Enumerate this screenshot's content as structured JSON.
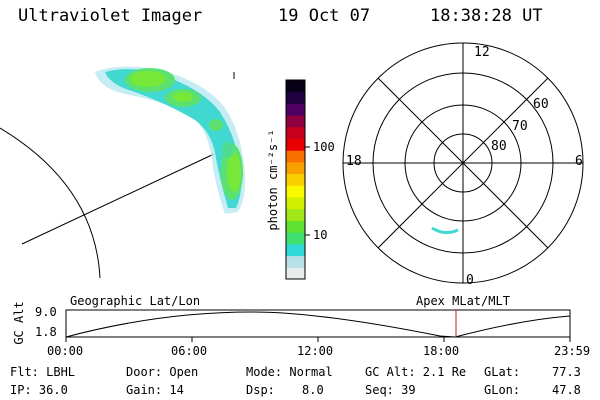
{
  "header": {
    "instrument": "Ultraviolet Imager",
    "date": "19 Oct 07",
    "time": "18:38:28 UT"
  },
  "colorbar": {
    "tick_100": "100",
    "tick_10": "10",
    "unit_label": "photon cm⁻²s⁻¹",
    "colors": [
      "#e8ecec",
      "#b8e0e8",
      "#30d8d8",
      "#40e070",
      "#60e030",
      "#a0e818",
      "#d0f000",
      "#f8f800",
      "#f8d000",
      "#f8a000",
      "#f87000",
      "#e80000",
      "#c80020",
      "#900040",
      "#500060",
      "#200040",
      "#080018"
    ]
  },
  "polar_plot": {
    "mlt_top": "12",
    "mlt_left": "18",
    "mlt_right": "6",
    "mlt_bottom": "0",
    "lat_60": "60",
    "lat_70": "70",
    "lat_80": "80"
  },
  "timeline": {
    "left_label": "Geographic Lat/Lon",
    "right_label": "Apex MLat/MLT",
    "axis_title": "GC Alt",
    "y_max": "9.0",
    "y_min": "1.8",
    "x_ticks": [
      "00:00",
      "06:00",
      "12:00",
      "18:00",
      "23:59"
    ],
    "marker_color": "#c02020"
  },
  "footer": {
    "flt": "Flt: LBHL",
    "ip": "IP: 36.0",
    "door": "Door: Open",
    "gain": "Gain: 14",
    "mode": "Mode: Normal",
    "dsp_label": "Dsp:",
    "dsp_value": "8.0",
    "gc_alt": "GC Alt: 2.1 Re",
    "seq": "Seq: 39",
    "glat_label": "GLat:",
    "glat_value": "77.3",
    "glon_label": "GLon:",
    "glon_value": "47.8"
  }
}
